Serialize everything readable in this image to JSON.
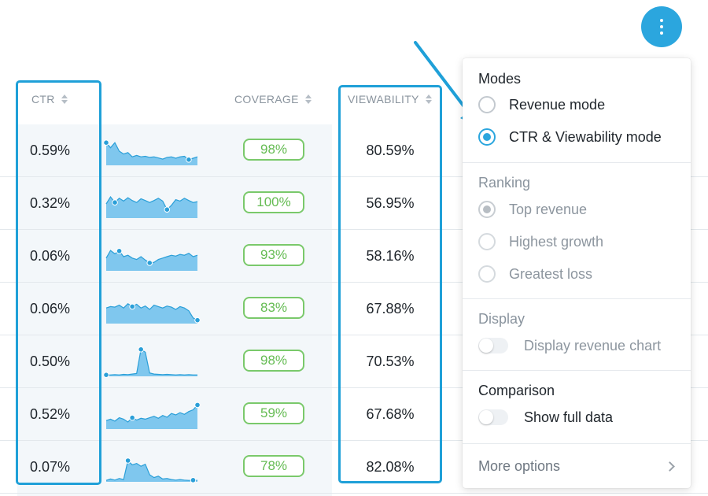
{
  "table": {
    "headers": {
      "ctr": "CTR",
      "coverage": "COVERAGE",
      "viewability": "VIEWABILITY"
    },
    "rows": [
      {
        "ctr": "0.59%",
        "coverage": "98%",
        "viewability": "80.59%",
        "spark": [
          0.8,
          0.62,
          0.8,
          0.5,
          0.4,
          0.45,
          0.3,
          0.35,
          0.3,
          0.32,
          0.28,
          0.3,
          0.26,
          0.22,
          0.28,
          0.3,
          0.25,
          0.3,
          0.32,
          0.2,
          0.25,
          0.3
        ],
        "dot_start": 0,
        "dot_end": 19
      },
      {
        "ctr": "0.32%",
        "coverage": "100%",
        "viewability": "56.95%",
        "spark": [
          0.5,
          0.75,
          0.55,
          0.7,
          0.6,
          0.72,
          0.62,
          0.55,
          0.68,
          0.62,
          0.55,
          0.62,
          0.7,
          0.6,
          0.3,
          0.45,
          0.65,
          0.6,
          0.7,
          0.62,
          0.55,
          0.58
        ],
        "dot_start": 2,
        "dot_end": 14
      },
      {
        "ctr": "0.06%",
        "coverage": "93%",
        "viewability": "58.16%",
        "spark": [
          0.45,
          0.72,
          0.6,
          0.7,
          0.5,
          0.55,
          0.45,
          0.4,
          0.5,
          0.38,
          0.28,
          0.3,
          0.4,
          0.45,
          0.5,
          0.55,
          0.52,
          0.58,
          0.55,
          0.62,
          0.5,
          0.55
        ],
        "dot_start": 3,
        "dot_end": 10
      },
      {
        "ctr": "0.06%",
        "coverage": "83%",
        "viewability": "67.88%",
        "spark": [
          0.55,
          0.6,
          0.58,
          0.65,
          0.55,
          0.7,
          0.6,
          0.68,
          0.55,
          0.62,
          0.5,
          0.65,
          0.6,
          0.55,
          0.62,
          0.58,
          0.5,
          0.6,
          0.55,
          0.45,
          0.2,
          0.12
        ],
        "dot_start": 6,
        "dot_end": 21
      },
      {
        "ctr": "0.50%",
        "coverage": "98%",
        "viewability": "70.53%",
        "spark": [
          0.05,
          0.05,
          0.06,
          0.05,
          0.07,
          0.06,
          0.08,
          0.1,
          0.95,
          0.85,
          0.12,
          0.08,
          0.07,
          0.06,
          0.07,
          0.06,
          0.05,
          0.06,
          0.05,
          0.06,
          0.05,
          0.05
        ],
        "dot_start": 8,
        "dot_end": 0
      },
      {
        "ctr": "0.52%",
        "coverage": "59%",
        "viewability": "67.68%",
        "spark": [
          0.3,
          0.35,
          0.28,
          0.4,
          0.35,
          0.25,
          0.4,
          0.32,
          0.38,
          0.35,
          0.4,
          0.45,
          0.38,
          0.48,
          0.42,
          0.55,
          0.5,
          0.58,
          0.52,
          0.62,
          0.68,
          0.85
        ],
        "dot_start": 6,
        "dot_end": 21
      },
      {
        "ctr": "0.07%",
        "coverage": "78%",
        "viewability": "82.08%",
        "spark": [
          0.05,
          0.1,
          0.06,
          0.12,
          0.08,
          0.75,
          0.6,
          0.65,
          0.55,
          0.62,
          0.25,
          0.15,
          0.2,
          0.1,
          0.12,
          0.08,
          0.06,
          0.08,
          0.06,
          0.05,
          0.06,
          0.05
        ],
        "dot_start": 5,
        "dot_end": 20
      }
    ]
  },
  "menu": {
    "modes": {
      "title": "Modes",
      "options": [
        {
          "label": "Revenue mode",
          "selected": false
        },
        {
          "label": "CTR & Viewability mode",
          "selected": true
        }
      ]
    },
    "ranking": {
      "title": "Ranking",
      "options": [
        {
          "label": "Top revenue",
          "selected": true
        },
        {
          "label": "Highest growth",
          "selected": false
        },
        {
          "label": "Greatest loss",
          "selected": false
        }
      ]
    },
    "display": {
      "title": "Display",
      "toggle_label": "Display revenue chart",
      "on": false
    },
    "comparison": {
      "title": "Comparison",
      "toggle_label": "Show full data",
      "on": false
    },
    "more_options": "More options"
  },
  "colors": {
    "accent": "#2ba6de",
    "highlight": "#1fa0d8",
    "coverage_green": "#64bb52",
    "spark_fill": "#7fc7ee",
    "spark_line": "#2a9fd8"
  },
  "icons": {
    "kebab": "vertical-dots-icon",
    "arrow": "annotation-arrow",
    "chevron": "chevron-right-icon",
    "sort": "sort-arrows-icon"
  }
}
